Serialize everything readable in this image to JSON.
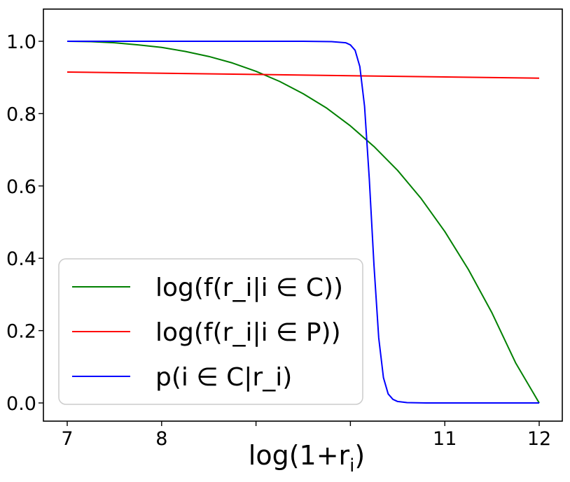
{
  "chart_data": {
    "type": "line",
    "xlabel_main": "log(1+r",
    "xlabel_sub": "i",
    "xlabel_close": ")",
    "xlim": [
      7,
      12
    ],
    "ylim": [
      -0.05,
      1.1
    ],
    "x_ticks": [
      {
        "value": 7,
        "label": "7"
      },
      {
        "value": 8,
        "label": "8"
      },
      {
        "value": 9,
        "label": ""
      },
      {
        "value": 10,
        "label": ""
      },
      {
        "value": 11,
        "label": "11"
      },
      {
        "value": 12,
        "label": "12"
      }
    ],
    "y_ticks": [
      {
        "value": 0.0,
        "label": "0.0"
      },
      {
        "value": 0.2,
        "label": "0.2"
      },
      {
        "value": 0.4,
        "label": "0.4"
      },
      {
        "value": 0.6,
        "label": "0.6"
      },
      {
        "value": 0.8,
        "label": "0.8"
      },
      {
        "value": 1.0,
        "label": "1.0"
      }
    ],
    "grid": false,
    "legend": {
      "position": "lower-left",
      "entries": [
        {
          "series": 0,
          "text": "log(f(r_i|i ∈ C))",
          "color": "#008000"
        },
        {
          "series": 1,
          "text": "log(f(r_i|i ∈ P))",
          "color": "#ff0000"
        },
        {
          "series": 2,
          "text": "p(i ∈ C|r_i)",
          "color": "#0000ff"
        }
      ]
    },
    "series": [
      {
        "color": "#008000",
        "x": [
          7.0,
          7.25,
          7.5,
          7.75,
          8.0,
          8.25,
          8.5,
          8.75,
          9.0,
          9.25,
          9.5,
          9.75,
          10.0,
          10.25,
          10.5,
          10.75,
          11.0,
          11.25,
          11.5,
          11.75,
          12.0
        ],
        "y": [
          1.0,
          0.999,
          0.996,
          0.99,
          0.983,
          0.972,
          0.958,
          0.94,
          0.917,
          0.889,
          0.855,
          0.815,
          0.766,
          0.709,
          0.643,
          0.565,
          0.474,
          0.369,
          0.249,
          0.111,
          0.0
        ]
      },
      {
        "color": "#ff0000",
        "x": [
          7.0,
          12.0
        ],
        "y": [
          0.915,
          0.898
        ]
      },
      {
        "color": "#0000ff",
        "x": [
          7.0,
          9.5,
          9.8,
          9.95,
          10.0,
          10.05,
          10.1,
          10.15,
          10.2,
          10.25,
          10.3,
          10.35,
          10.4,
          10.45,
          10.5,
          10.6,
          10.8,
          12.0
        ],
        "y": [
          1.0,
          1.0,
          0.999,
          0.996,
          0.99,
          0.975,
          0.93,
          0.82,
          0.62,
          0.38,
          0.18,
          0.07,
          0.025,
          0.01,
          0.004,
          0.001,
          0.0,
          0.0
        ]
      }
    ]
  }
}
